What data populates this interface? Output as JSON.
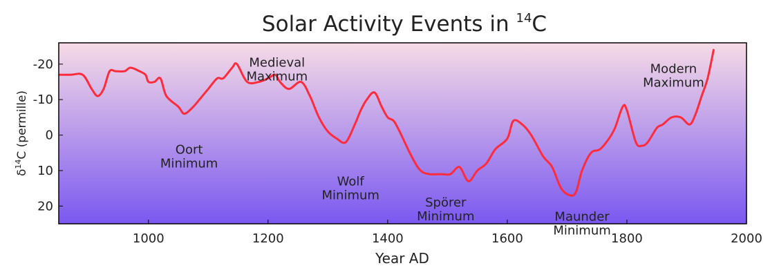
{
  "chart_data": {
    "type": "line",
    "title": "Solar Activity Events in ",
    "title_isotope": "14",
    "title_element": "C",
    "xlabel": "Year AD",
    "ylabel": {
      "prefix": "δ",
      "sup": "14",
      "suffix": "C (permille)"
    },
    "xlim": [
      850,
      2000
    ],
    "ylim": [
      25,
      -26
    ],
    "y_inverted": true,
    "grid": false,
    "x_ticks": [
      {
        "value": 1000,
        "label": "1000"
      },
      {
        "value": 1200,
        "label": "1200"
      },
      {
        "value": 1400,
        "label": "1400"
      },
      {
        "value": 1600,
        "label": "1600"
      },
      {
        "value": 1800,
        "label": "1800"
      },
      {
        "value": 2000,
        "label": "2000"
      }
    ],
    "y_ticks": [
      {
        "value": -20,
        "label": "-20"
      },
      {
        "value": -10,
        "label": "-10"
      },
      {
        "value": 0,
        "label": "0"
      },
      {
        "value": 10,
        "label": "10"
      },
      {
        "value": 20,
        "label": "20"
      }
    ],
    "background_gradient": [
      "#f6dbe6",
      "#7a58f0"
    ],
    "line_color": "#ff2a3a",
    "series": [
      {
        "x": [
          850,
          870,
          890,
          905,
          915,
          925,
          935,
          945,
          960,
          970,
          985,
          995,
          1000,
          1010,
          1020,
          1030,
          1050,
          1060,
          1075,
          1090,
          1100,
          1115,
          1125,
          1140,
          1148,
          1165,
          1185,
          1200,
          1212,
          1220,
          1235,
          1255,
          1270,
          1285,
          1300,
          1315,
          1330,
          1345,
          1355,
          1365,
          1378,
          1390,
          1400,
          1410,
          1420,
          1440,
          1455,
          1470,
          1490,
          1505,
          1520,
          1535,
          1550,
          1565,
          1580,
          1600,
          1610,
          1625,
          1640,
          1660,
          1675,
          1690,
          1705,
          1715,
          1725,
          1740,
          1755,
          1770,
          1780,
          1793,
          1800,
          1815,
          1825,
          1835,
          1850,
          1860,
          1875,
          1890,
          1905,
          1915,
          1925,
          1935,
          1945
        ],
        "y": [
          -17,
          -17,
          -17,
          -13,
          -11,
          -13,
          -18,
          -18,
          -18,
          -19,
          -18,
          -17,
          -15,
          -15,
          -16,
          -11,
          -8,
          -6,
          -8,
          -11,
          -13,
          -16,
          -16,
          -19,
          -20,
          -15,
          -15,
          -16,
          -17,
          -15,
          -13,
          -15,
          -11,
          -5,
          -1,
          1,
          2,
          -3,
          -7,
          -10,
          -12,
          -8,
          -5,
          -4,
          -1,
          6,
          10,
          11,
          11,
          11,
          9,
          13,
          10,
          8,
          4,
          1,
          -4,
          -3,
          0,
          6,
          9,
          15,
          17,
          16,
          10,
          5,
          4,
          1,
          -2,
          -8,
          -7,
          2,
          3,
          2,
          -2,
          -3,
          -5,
          -5,
          -3,
          -6,
          -11,
          -16,
          -24
        ]
      }
    ],
    "annotations": [
      {
        "lines": [
          "Medieval",
          "Maximum"
        ],
        "x": 1215,
        "y": -22.2
      },
      {
        "lines": [
          "Oort",
          "Minimum"
        ],
        "x": 1068,
        "y": 2.3
      },
      {
        "lines": [
          "Wolf",
          "Minimum"
        ],
        "x": 1338,
        "y": 11.3
      },
      {
        "lines": [
          "Spörer",
          "Minimum"
        ],
        "x": 1497,
        "y": 17.2
      },
      {
        "lines": [
          "Maunder",
          "Minimum"
        ],
        "x": 1725,
        "y": 21.2
      },
      {
        "lines": [
          "Modern",
          "Maximum"
        ],
        "x": 1878,
        "y": -20.5
      }
    ]
  }
}
